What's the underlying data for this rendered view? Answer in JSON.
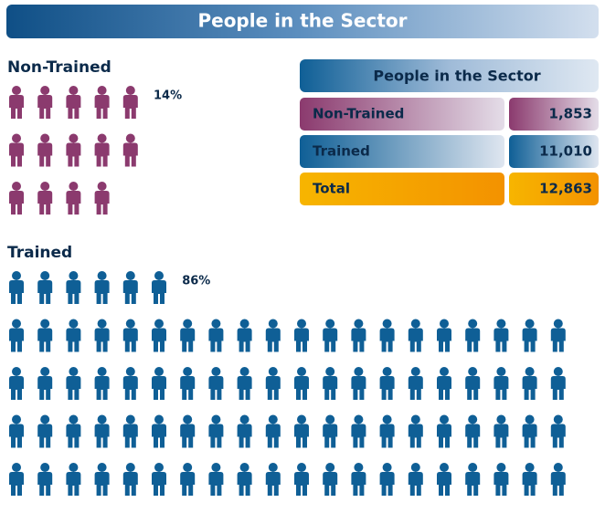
{
  "chart_data": {
    "type": "pictogram",
    "title": "People in the Sector",
    "categories": [
      "Non-Trained",
      "Trained"
    ],
    "values": [
      14,
      86
    ],
    "value_labels": [
      "14%",
      "86%"
    ],
    "colors": [
      "#8b3a6e",
      "#0f5f96"
    ]
  },
  "table": {
    "title": "People in the Sector",
    "rows": [
      [
        "Non-Trained",
        "1,853"
      ],
      [
        "Trained",
        "11,010"
      ],
      [
        "Total",
        "12,863"
      ]
    ]
  }
}
